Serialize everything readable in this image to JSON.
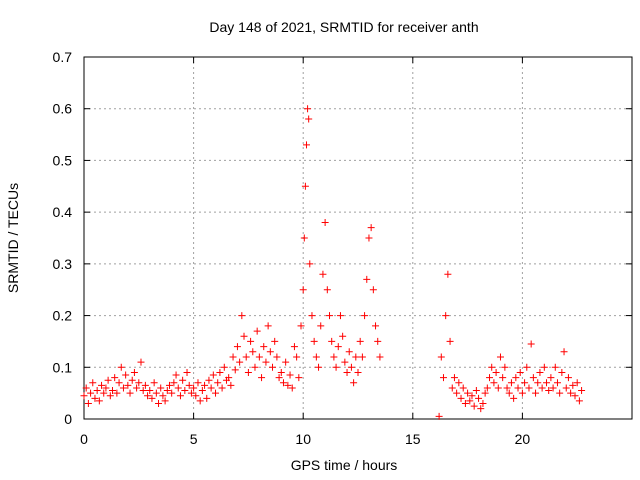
{
  "chart_data": {
    "type": "scatter",
    "title": "Day 148 of 2021, SRMTID for receiver anth",
    "xlabel": "GPS time / hours",
    "ylabel": "SRMTID / TECUs",
    "xlim": [
      0,
      25
    ],
    "ylim": [
      0,
      0.7
    ],
    "x_ticks": [
      0,
      5,
      10,
      15,
      20
    ],
    "y_ticks": [
      0,
      0.1,
      0.2,
      0.3,
      0.4,
      0.5,
      0.6,
      0.7
    ],
    "x_tick_labels": [
      "0",
      "5",
      "10",
      "15",
      "20"
    ],
    "y_tick_labels": [
      "0",
      "0.1",
      "0.2",
      "0.3",
      "0.4",
      "0.5",
      "0.6",
      "0.7"
    ],
    "grid": true,
    "marker": "+",
    "colors": {
      "series": "#ff0000",
      "grid": "#a0a0a0",
      "axis": "#000000"
    },
    "series": [
      {
        "name": "SRMTID",
        "points": [
          [
            0.0,
            0.045
          ],
          [
            0.1,
            0.06
          ],
          [
            0.2,
            0.03
          ],
          [
            0.3,
            0.05
          ],
          [
            0.4,
            0.07
          ],
          [
            0.5,
            0.04
          ],
          [
            0.6,
            0.055
          ],
          [
            0.7,
            0.035
          ],
          [
            0.8,
            0.065
          ],
          [
            0.9,
            0.05
          ],
          [
            1.0,
            0.06
          ],
          [
            1.1,
            0.075
          ],
          [
            1.2,
            0.045
          ],
          [
            1.3,
            0.055
          ],
          [
            1.4,
            0.08
          ],
          [
            1.5,
            0.05
          ],
          [
            1.6,
            0.07
          ],
          [
            1.7,
            0.1
          ],
          [
            1.8,
            0.06
          ],
          [
            1.9,
            0.085
          ],
          [
            2.0,
            0.065
          ],
          [
            2.1,
            0.05
          ],
          [
            2.2,
            0.075
          ],
          [
            2.3,
            0.09
          ],
          [
            2.4,
            0.06
          ],
          [
            2.5,
            0.07
          ],
          [
            2.6,
            0.11
          ],
          [
            2.7,
            0.055
          ],
          [
            2.8,
            0.065
          ],
          [
            2.9,
            0.045
          ],
          [
            3.0,
            0.055
          ],
          [
            3.1,
            0.04
          ],
          [
            3.2,
            0.07
          ],
          [
            3.3,
            0.05
          ],
          [
            3.4,
            0.03
          ],
          [
            3.5,
            0.06
          ],
          [
            3.6,
            0.045
          ],
          [
            3.7,
            0.035
          ],
          [
            3.8,
            0.055
          ],
          [
            3.9,
            0.065
          ],
          [
            4.0,
            0.05
          ],
          [
            4.1,
            0.07
          ],
          [
            4.2,
            0.085
          ],
          [
            4.3,
            0.06
          ],
          [
            4.4,
            0.045
          ],
          [
            4.5,
            0.075
          ],
          [
            4.6,
            0.055
          ],
          [
            4.7,
            0.09
          ],
          [
            4.8,
            0.065
          ],
          [
            4.9,
            0.05
          ],
          [
            5.0,
            0.06
          ],
          [
            5.1,
            0.045
          ],
          [
            5.2,
            0.07
          ],
          [
            5.3,
            0.035
          ],
          [
            5.4,
            0.055
          ],
          [
            5.5,
            0.065
          ],
          [
            5.6,
            0.04
          ],
          [
            5.7,
            0.075
          ],
          [
            5.8,
            0.06
          ],
          [
            5.9,
            0.085
          ],
          [
            6.0,
            0.05
          ],
          [
            6.1,
            0.07
          ],
          [
            6.2,
            0.09
          ],
          [
            6.3,
            0.06
          ],
          [
            6.4,
            0.1
          ],
          [
            6.5,
            0.075
          ],
          [
            6.6,
            0.08
          ],
          [
            6.7,
            0.065
          ],
          [
            6.8,
            0.12
          ],
          [
            6.9,
            0.095
          ],
          [
            7.0,
            0.14
          ],
          [
            7.1,
            0.11
          ],
          [
            7.2,
            0.2
          ],
          [
            7.3,
            0.16
          ],
          [
            7.4,
            0.12
          ],
          [
            7.5,
            0.09
          ],
          [
            7.6,
            0.15
          ],
          [
            7.7,
            0.13
          ],
          [
            7.8,
            0.1
          ],
          [
            7.9,
            0.17
          ],
          [
            8.0,
            0.12
          ],
          [
            8.1,
            0.08
          ],
          [
            8.2,
            0.14
          ],
          [
            8.3,
            0.11
          ],
          [
            8.4,
            0.18
          ],
          [
            8.5,
            0.13
          ],
          [
            8.6,
            0.1
          ],
          [
            8.7,
            0.15
          ],
          [
            8.8,
            0.12
          ],
          [
            8.9,
            0.08
          ],
          [
            9.0,
            0.09
          ],
          [
            9.1,
            0.07
          ],
          [
            9.2,
            0.11
          ],
          [
            9.3,
            0.065
          ],
          [
            9.4,
            0.085
          ],
          [
            9.5,
            0.06
          ],
          [
            9.6,
            0.14
          ],
          [
            9.7,
            0.12
          ],
          [
            9.8,
            0.08
          ],
          [
            9.9,
            0.18
          ],
          [
            10.0,
            0.25
          ],
          [
            10.05,
            0.35
          ],
          [
            10.1,
            0.45
          ],
          [
            10.15,
            0.53
          ],
          [
            10.2,
            0.6
          ],
          [
            10.25,
            0.58
          ],
          [
            10.3,
            0.3
          ],
          [
            10.4,
            0.2
          ],
          [
            10.5,
            0.15
          ],
          [
            10.6,
            0.12
          ],
          [
            10.7,
            0.1
          ],
          [
            10.8,
            0.18
          ],
          [
            10.9,
            0.28
          ],
          [
            11.0,
            0.38
          ],
          [
            11.1,
            0.25
          ],
          [
            11.2,
            0.2
          ],
          [
            11.3,
            0.15
          ],
          [
            11.4,
            0.12
          ],
          [
            11.5,
            0.1
          ],
          [
            11.6,
            0.14
          ],
          [
            11.7,
            0.2
          ],
          [
            11.8,
            0.16
          ],
          [
            11.9,
            0.11
          ],
          [
            12.0,
            0.09
          ],
          [
            12.1,
            0.13
          ],
          [
            12.2,
            0.1
          ],
          [
            12.3,
            0.07
          ],
          [
            12.4,
            0.12
          ],
          [
            12.5,
            0.09
          ],
          [
            12.6,
            0.15
          ],
          [
            12.7,
            0.12
          ],
          [
            12.8,
            0.2
          ],
          [
            12.9,
            0.27
          ],
          [
            13.0,
            0.35
          ],
          [
            13.1,
            0.37
          ],
          [
            13.2,
            0.25
          ],
          [
            13.3,
            0.18
          ],
          [
            13.4,
            0.15
          ],
          [
            13.5,
            0.12
          ],
          [
            16.2,
            0.005
          ],
          [
            16.3,
            0.12
          ],
          [
            16.4,
            0.08
          ],
          [
            16.5,
            0.2
          ],
          [
            16.6,
            0.28
          ],
          [
            16.7,
            0.15
          ],
          [
            16.8,
            0.06
          ],
          [
            16.9,
            0.08
          ],
          [
            17.0,
            0.05
          ],
          [
            17.1,
            0.07
          ],
          [
            17.2,
            0.04
          ],
          [
            17.3,
            0.06
          ],
          [
            17.4,
            0.03
          ],
          [
            17.5,
            0.05
          ],
          [
            17.6,
            0.035
          ],
          [
            17.7,
            0.045
          ],
          [
            17.8,
            0.025
          ],
          [
            17.9,
            0.055
          ],
          [
            18.0,
            0.04
          ],
          [
            18.1,
            0.02
          ],
          [
            18.2,
            0.03
          ],
          [
            18.3,
            0.05
          ],
          [
            18.4,
            0.06
          ],
          [
            18.5,
            0.08
          ],
          [
            18.6,
            0.1
          ],
          [
            18.7,
            0.07
          ],
          [
            18.8,
            0.09
          ],
          [
            18.9,
            0.06
          ],
          [
            19.0,
            0.12
          ],
          [
            19.1,
            0.08
          ],
          [
            19.2,
            0.1
          ],
          [
            19.3,
            0.06
          ],
          [
            19.4,
            0.05
          ],
          [
            19.5,
            0.07
          ],
          [
            19.6,
            0.04
          ],
          [
            19.7,
            0.08
          ],
          [
            19.8,
            0.06
          ],
          [
            19.9,
            0.09
          ],
          [
            20.0,
            0.05
          ],
          [
            20.1,
            0.07
          ],
          [
            20.2,
            0.1
          ],
          [
            20.3,
            0.06
          ],
          [
            20.4,
            0.145
          ],
          [
            20.5,
            0.08
          ],
          [
            20.6,
            0.05
          ],
          [
            20.7,
            0.07
          ],
          [
            20.8,
            0.09
          ],
          [
            20.9,
            0.06
          ],
          [
            21.0,
            0.1
          ],
          [
            21.1,
            0.07
          ],
          [
            21.2,
            0.055
          ],
          [
            21.3,
            0.08
          ],
          [
            21.4,
            0.06
          ],
          [
            21.5,
            0.1
          ],
          [
            21.6,
            0.07
          ],
          [
            21.7,
            0.05
          ],
          [
            21.8,
            0.09
          ],
          [
            21.9,
            0.13
          ],
          [
            22.0,
            0.06
          ],
          [
            22.1,
            0.08
          ],
          [
            22.2,
            0.05
          ],
          [
            22.3,
            0.065
          ],
          [
            22.4,
            0.045
          ],
          [
            22.5,
            0.07
          ],
          [
            22.6,
            0.035
          ],
          [
            22.7,
            0.055
          ]
        ]
      }
    ]
  }
}
